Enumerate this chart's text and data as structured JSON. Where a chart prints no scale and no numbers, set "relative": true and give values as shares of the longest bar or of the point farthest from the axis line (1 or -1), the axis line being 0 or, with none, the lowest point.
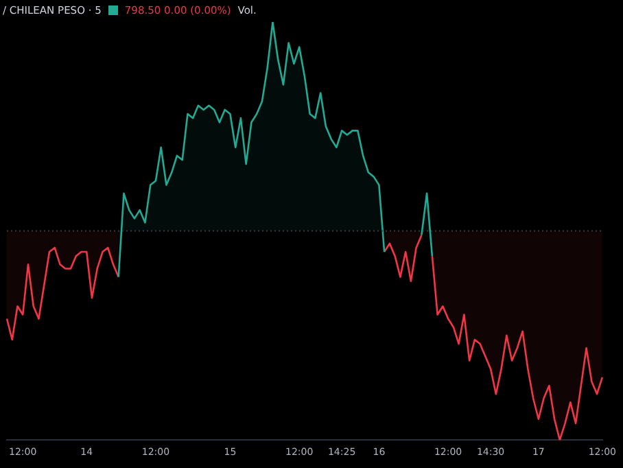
{
  "chart_data": {
    "type": "area",
    "title": "/ CHILEAN PESO · 5",
    "annotations": [
      "798.50 0.00 (0.00%)",
      "Vol."
    ],
    "relative": true,
    "tick_labels": "x",
    "marker": "none",
    "categories": [
      null,
      null,
      null,
      "12:00",
      null,
      null,
      null,
      null,
      null,
      null,
      null,
      null,
      null,
      null,
      null,
      "14",
      null,
      null,
      null,
      null,
      null,
      null,
      null,
      null,
      null,
      null,
      null,
      null,
      "12:00",
      null,
      null,
      null,
      null,
      null,
      null,
      null,
      null,
      null,
      null,
      null,
      null,
      null,
      "15",
      null,
      null,
      null,
      null,
      null,
      null,
      null,
      null,
      null,
      null,
      null,
      null,
      "12:00",
      null,
      null,
      null,
      null,
      null,
      null,
      null,
      "14:25",
      null,
      null,
      null,
      null,
      null,
      null,
      "16",
      null,
      null,
      null,
      null,
      null,
      null,
      null,
      null,
      null,
      null,
      null,
      null,
      "12:00",
      null,
      null,
      null,
      null,
      null,
      null,
      null,
      "14:30",
      null,
      null,
      null,
      null,
      null,
      null,
      null,
      null,
      "17",
      null,
      null,
      null,
      null,
      null,
      null,
      null,
      null,
      null,
      null,
      null,
      "12:00"
    ],
    "series": [
      {
        "color": "#22ab94",
        "values": [
          null,
          null,
          null,
          null,
          null,
          null,
          null,
          null,
          null,
          null,
          null,
          null,
          null,
          null,
          null,
          null,
          null,
          null,
          null,
          null,
          null,
          -0.22,
          0.18,
          0.1,
          0.06,
          0.1,
          0.04,
          0.22,
          0.24,
          0.4,
          0.22,
          0.28,
          0.36,
          0.34,
          0.56,
          0.54,
          0.6,
          0.58,
          0.6,
          0.58,
          0.52,
          0.58,
          0.56,
          0.4,
          0.54,
          0.32,
          0.52,
          0.56,
          0.62,
          0.78,
          1,
          0.82,
          0.7,
          0.9,
          0.8,
          0.88,
          0.74,
          0.56,
          0.54,
          0.66,
          0.5,
          0.44,
          0.4,
          0.48,
          0.46,
          0.48,
          0.48,
          0.36,
          0.28,
          0.26,
          0.22,
          -0.1,
          null,
          null,
          null,
          null,
          null,
          null,
          -0.02,
          0.18,
          -0.12,
          null,
          null,
          null,
          null,
          null,
          null,
          null,
          null,
          null,
          null,
          null,
          null,
          null,
          null,
          null,
          null,
          null,
          null,
          null,
          null,
          null,
          null,
          null,
          null,
          null,
          null,
          null,
          null,
          null,
          null,
          null,
          null
        ]
      },
      {
        "color": "#f23645",
        "values": [
          -0.42,
          -0.52,
          -0.36,
          -0.4,
          -0.16,
          -0.36,
          -0.42,
          -0.26,
          -0.1,
          -0.08,
          -0.16,
          -0.18,
          -0.18,
          -0.12,
          -0.1,
          -0.1,
          -0.32,
          -0.18,
          -0.1,
          -0.08,
          -0.16,
          -0.22,
          null,
          null,
          null,
          null,
          null,
          null,
          null,
          null,
          null,
          null,
          null,
          null,
          null,
          null,
          null,
          null,
          null,
          null,
          null,
          null,
          null,
          null,
          null,
          null,
          null,
          null,
          null,
          null,
          null,
          null,
          null,
          null,
          null,
          null,
          null,
          null,
          null,
          null,
          null,
          null,
          null,
          null,
          null,
          null,
          null,
          null,
          null,
          null,
          null,
          -0.1,
          -0.06,
          -0.12,
          -0.22,
          -0.1,
          -0.24,
          -0.08,
          -0.02,
          null,
          -0.12,
          -0.4,
          -0.36,
          -0.42,
          -0.46,
          -0.54,
          -0.4,
          -0.62,
          -0.52,
          -0.54,
          -0.6,
          -0.66,
          -0.78,
          -0.66,
          -0.5,
          -0.62,
          -0.56,
          -0.48,
          -0.66,
          -0.8,
          -0.9,
          -0.8,
          -0.74,
          -0.9,
          -1,
          -0.92,
          -0.82,
          -0.92,
          -0.74,
          -0.56,
          -0.72,
          -0.78,
          -0.7
        ]
      }
    ],
    "ref_lines": [
      {
        "axis": "y",
        "value": 0,
        "color": "#363a45",
        "line_style": "dotted"
      }
    ]
  }
}
